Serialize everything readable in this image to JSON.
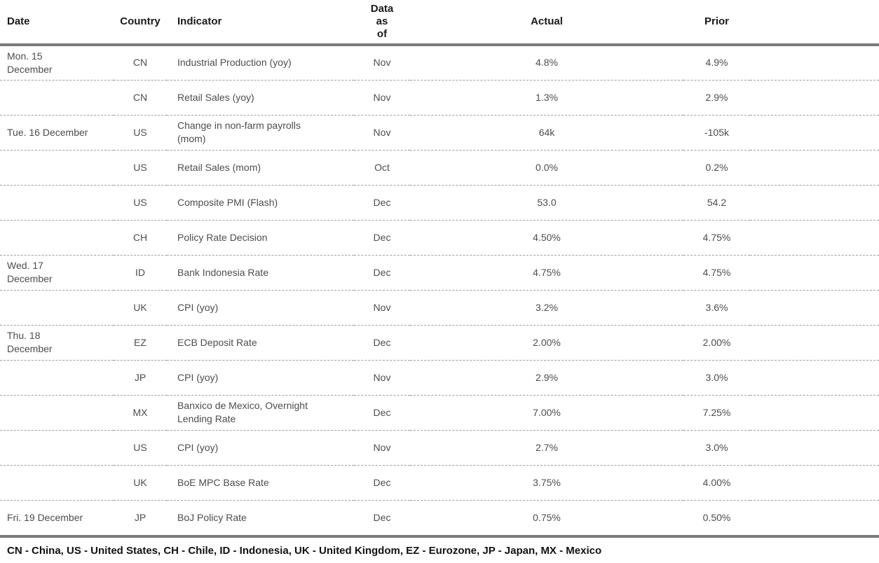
{
  "table": {
    "columns": [
      {
        "key": "date",
        "label": "Date"
      },
      {
        "key": "country",
        "label": "Country"
      },
      {
        "key": "indicator",
        "label": "Indicator"
      },
      {
        "key": "data_as_of",
        "label": "Data\nas\nof"
      },
      {
        "key": "actual",
        "label": "Actual"
      },
      {
        "key": "prior",
        "label": "Prior"
      }
    ],
    "rows": [
      {
        "date": "Mon. 15\nDecember",
        "country": "CN",
        "indicator": "Industrial Production (yoy)",
        "data_as_of": "Nov",
        "actual": "4.8%",
        "prior": "4.9%"
      },
      {
        "date": "",
        "country": "CN",
        "indicator": "Retail Sales (yoy)",
        "data_as_of": "Nov",
        "actual": "1.3%",
        "prior": "2.9%"
      },
      {
        "date": "Tue. 16 December",
        "country": "US",
        "indicator": "Change in non-farm payrolls (mom)",
        "data_as_of": "Nov",
        "actual": "64k",
        "prior": "-105k"
      },
      {
        "date": "",
        "country": "US",
        "indicator": "Retail Sales (mom)",
        "data_as_of": "Oct",
        "actual": "0.0%",
        "prior": "0.2%"
      },
      {
        "date": "",
        "country": "US",
        "indicator": "Composite PMI (Flash)",
        "data_as_of": "Dec",
        "actual": "53.0",
        "prior": "54.2"
      },
      {
        "date": "",
        "country": "CH",
        "indicator": "Policy Rate Decision",
        "data_as_of": "Dec",
        "actual": "4.50%",
        "prior": "4.75%"
      },
      {
        "date": "Wed. 17\nDecember",
        "country": "ID",
        "indicator": "Bank Indonesia Rate",
        "data_as_of": "Dec",
        "actual": "4.75%",
        "prior": "4.75%"
      },
      {
        "date": "",
        "country": "UK",
        "indicator": "CPI (yoy)",
        "data_as_of": "Nov",
        "actual": "3.2%",
        "prior": "3.6%"
      },
      {
        "date": "Thu. 18\nDecember",
        "country": "EZ",
        "indicator": "ECB Deposit Rate",
        "data_as_of": "Dec",
        "actual": "2.00%",
        "prior": "2.00%"
      },
      {
        "date": "",
        "country": "JP",
        "indicator": "CPI (yoy)",
        "data_as_of": "Nov",
        "actual": "2.9%",
        "prior": "3.0%"
      },
      {
        "date": "",
        "country": "MX",
        "indicator": "Banxico de Mexico, Overnight Lending Rate",
        "data_as_of": "Dec",
        "actual": "7.00%",
        "prior": "7.25%"
      },
      {
        "date": "",
        "country": "US",
        "indicator": "CPI (yoy)",
        "data_as_of": "Nov",
        "actual": "2.7%",
        "prior": "3.0%"
      },
      {
        "date": "",
        "country": "UK",
        "indicator": "BoE MPC Base Rate",
        "data_as_of": "Dec",
        "actual": "3.75%",
        "prior": "4.00%"
      },
      {
        "date": "Fri. 19 December",
        "country": "JP",
        "indicator": "BoJ Policy Rate",
        "data_as_of": "Dec",
        "actual": "0.75%",
        "prior": "0.50%"
      }
    ],
    "footnote": "CN - China, US - United States, CH - Chile, ID - Indonesia, UK - United Kingdom, EZ - Eurozone, JP - Japan, MX - Mexico"
  },
  "colors": {
    "thick_rule": "#7a7a7a",
    "row_separator": "#a0a0a0",
    "header_text": "#1a1a1a",
    "body_text": "#4d4d4d",
    "footnote_text": "#111111",
    "background": "#ffffff"
  }
}
